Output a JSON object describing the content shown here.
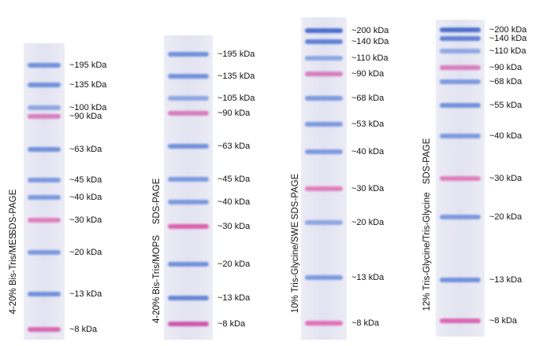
{
  "gels": [
    {
      "caption": "4-20% Bis-Tris/MES",
      "method": "SDS-PAGE",
      "bands": [
        {
          "label": "~195 kDa",
          "color": "#5d82d8"
        },
        {
          "label": "~135 kDa",
          "color": "#5d82d8"
        },
        {
          "label": "~100 kDa",
          "color": "#7f9ce0"
        },
        {
          "label": "~90 kDa",
          "color": "#d56ab5"
        },
        {
          "label": "~63 kDa",
          "color": "#5d82d8"
        },
        {
          "label": "~45 kDa",
          "color": "#6b8cdc"
        },
        {
          "label": "~40 kDa",
          "color": "#6b8cdc"
        },
        {
          "label": "~30 kDa",
          "color": "#e06cb2"
        },
        {
          "label": "~20 kDa",
          "color": "#6b8cdc"
        },
        {
          "label": "~13 kDa",
          "color": "#5d82d8"
        },
        {
          "label": "~8 kDa",
          "color": "#d94fa8"
        }
      ]
    },
    {
      "caption": "4-20% Bis-Tris/MOPS",
      "method": "SDS-PAGE",
      "bands": [
        {
          "label": "~195 kDa",
          "color": "#5d82d8"
        },
        {
          "label": "~135 kDa",
          "color": "#5d82d8"
        },
        {
          "label": "~105 kDa",
          "color": "#7f9ce0"
        },
        {
          "label": "~90 kDa",
          "color": "#d56ab5"
        },
        {
          "label": "~63 kDa",
          "color": "#5d82d8"
        },
        {
          "label": "~45 kDa",
          "color": "#6b8cdc"
        },
        {
          "label": "~40 kDa",
          "color": "#6b8cdc"
        },
        {
          "label": "~30 kDa",
          "color": "#d9489f"
        },
        {
          "label": "~20 kDa",
          "color": "#5d82d8"
        },
        {
          "label": "~13 kDa",
          "color": "#4f74d2"
        },
        {
          "label": "~8 kDa",
          "color": "#c93e9e"
        }
      ]
    },
    {
      "caption": "10% Tris-Glycine/SWE",
      "method": "SDS-PAGE",
      "bands": [
        {
          "label": "~200 kDa",
          "color": "#3158c8"
        },
        {
          "label": "~140 kDa",
          "color": "#4a6fd0"
        },
        {
          "label": "~110 kDa",
          "color": "#7f9ce0"
        },
        {
          "label": "~90 kDa",
          "color": "#d56ab5"
        },
        {
          "label": "~68 kDa",
          "color": "#6b8cdc"
        },
        {
          "label": "~53 kDa",
          "color": "#6b8cdc"
        },
        {
          "label": "~40 kDa",
          "color": "#6b8cdc"
        },
        {
          "label": "~30 kDa",
          "color": "#e06cb2"
        },
        {
          "label": "~20 kDa",
          "color": "#7f9ce0"
        },
        {
          "label": "~13 kDa",
          "color": "#6b8cdc"
        },
        {
          "label": "~8 kDa",
          "color": "#e05aad"
        }
      ]
    },
    {
      "caption": "12% Tris-Glycine/Tris-Glycine",
      "method": "SDS-PAGE",
      "bands": [
        {
          "label": "~200 kDa",
          "color": "#3158c8"
        },
        {
          "label": "~140 kDa",
          "color": "#4a6fd0"
        },
        {
          "label": "~110 kDa",
          "color": "#7f9ce0"
        },
        {
          "label": "~90 kDa",
          "color": "#d56ab5"
        },
        {
          "label": "~68 kDa",
          "color": "#6b8cdc"
        },
        {
          "label": "~55 kDa",
          "color": "#5d82d8"
        },
        {
          "label": "~40 kDa",
          "color": "#6b8cdc"
        },
        {
          "label": "~30 kDa",
          "color": "#e06cb2"
        },
        {
          "label": "~20 kDa",
          "color": "#6b8cdc"
        },
        {
          "label": "~13 kDa",
          "color": "#5d82d8"
        },
        {
          "label": "~8 kDa",
          "color": "#d94fa8"
        }
      ]
    }
  ]
}
